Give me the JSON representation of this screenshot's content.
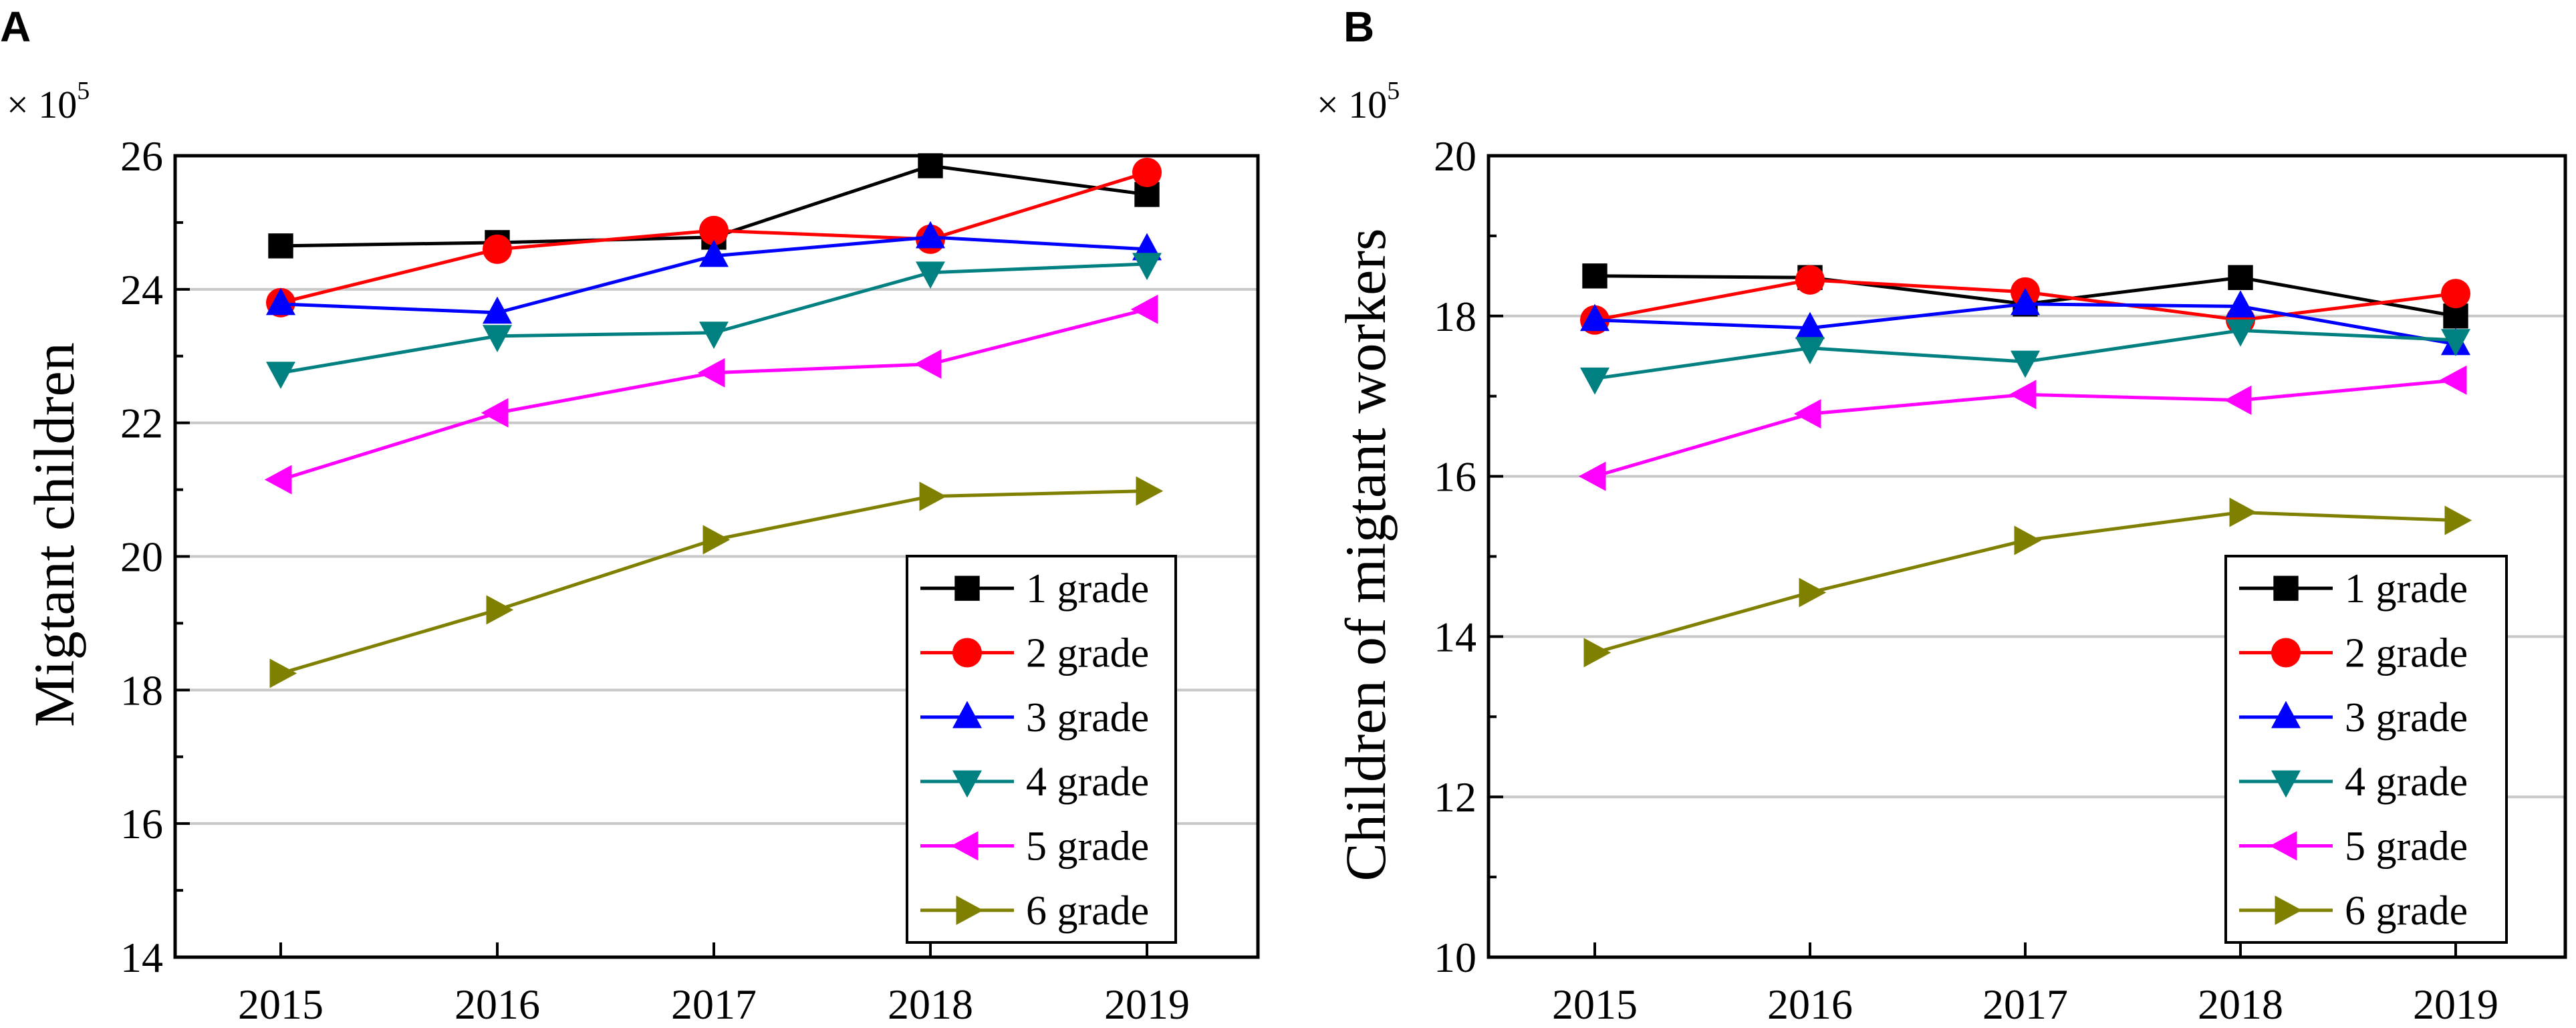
{
  "chart_data": [
    {
      "type": "line",
      "panel_label": "A",
      "multiplier": "× 10",
      "multiplier_exp": "5",
      "title": "",
      "xlabel": "",
      "ylabel": "Migtant children",
      "categories": [
        "2015",
        "2016",
        "2017",
        "2018",
        "2019"
      ],
      "ylim": [
        14,
        26
      ],
      "yticks": [
        "14",
        "16",
        "18",
        "20",
        "22",
        "24",
        "26"
      ],
      "grid": "horizontal",
      "legend_position": "bottom-right",
      "series": [
        {
          "name": "1 grade",
          "marker": "square",
          "color": "#000000",
          "values": [
            24.65,
            24.7,
            24.78,
            25.85,
            25.42
          ]
        },
        {
          "name": "2 grade",
          "marker": "circle",
          "color": "#ff0000",
          "values": [
            23.8,
            24.6,
            24.88,
            24.75,
            25.75
          ]
        },
        {
          "name": "3 grade",
          "marker": "triangle-up",
          "color": "#0000ff",
          "values": [
            23.78,
            23.65,
            24.5,
            24.78,
            24.6
          ]
        },
        {
          "name": "4 grade",
          "marker": "triangle-down",
          "color": "#008080",
          "values": [
            22.75,
            23.3,
            23.35,
            24.25,
            24.38
          ]
        },
        {
          "name": "5 grade",
          "marker": "triangle-left",
          "color": "#ff00ff",
          "values": [
            21.15,
            22.15,
            22.75,
            22.88,
            23.7
          ]
        },
        {
          "name": "6 grade",
          "marker": "triangle-right",
          "color": "#808000",
          "values": [
            18.25,
            19.2,
            20.25,
            20.9,
            20.98
          ]
        }
      ]
    },
    {
      "type": "line",
      "panel_label": "B",
      "multiplier": "× 10",
      "multiplier_exp": "5",
      "title": "",
      "xlabel": "",
      "ylabel": "Children of migtant workers",
      "categories": [
        "2015",
        "2016",
        "2017",
        "2018",
        "2019"
      ],
      "ylim": [
        10,
        20
      ],
      "yticks": [
        "10",
        "12",
        "14",
        "16",
        "18",
        "20"
      ],
      "grid": "horizontal",
      "legend_position": "bottom-right",
      "series": [
        {
          "name": "1 grade",
          "marker": "square",
          "color": "#000000",
          "values": [
            18.5,
            18.48,
            18.15,
            18.48,
            18.0
          ]
        },
        {
          "name": "2 grade",
          "marker": "circle",
          "color": "#ff0000",
          "values": [
            17.95,
            18.45,
            18.3,
            17.95,
            18.28
          ]
        },
        {
          "name": "3 grade",
          "marker": "triangle-up",
          "color": "#0000ff",
          "values": [
            17.95,
            17.85,
            18.15,
            18.12,
            17.65
          ]
        },
        {
          "name": "4 grade",
          "marker": "triangle-down",
          "color": "#008080",
          "values": [
            17.22,
            17.6,
            17.43,
            17.82,
            17.7
          ]
        },
        {
          "name": "5 grade",
          "marker": "triangle-left",
          "color": "#ff00ff",
          "values": [
            16.0,
            16.78,
            17.02,
            16.95,
            17.2
          ]
        },
        {
          "name": "6 grade",
          "marker": "triangle-right",
          "color": "#808000",
          "values": [
            13.8,
            14.55,
            15.2,
            15.55,
            15.45
          ]
        }
      ]
    }
  ]
}
